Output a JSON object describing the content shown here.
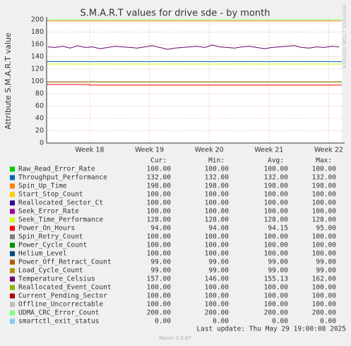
{
  "chart_data": {
    "type": "line",
    "title": "S.M.A.R.T values for drive sde - by month",
    "y_label": "Attribute S.M.A.R.T value",
    "side_label": "RRDTOOL / TOBI OETIKER",
    "footer": "Last update: Thu May 29 19:00:08 2025",
    "version": "Munin 2.0.67",
    "legend_headers": [
      "Cur:",
      "Min:",
      "Avg:",
      "Max:"
    ],
    "xlim": [
      17.28,
      22.22
    ],
    "xticks": [
      {
        "value": 18,
        "label": "Week 18"
      },
      {
        "value": 19,
        "label": "Week 19"
      },
      {
        "value": 20,
        "label": "Week 20"
      },
      {
        "value": 21,
        "label": "Week 21"
      },
      {
        "value": 22,
        "label": "Week 22"
      }
    ],
    "ylim": [
      0,
      200
    ],
    "yticks": [
      0,
      20,
      40,
      60,
      80,
      100,
      120,
      140,
      160,
      180,
      200
    ],
    "grid": true,
    "series": [
      {
        "name": "Raw_Read_Error_Rate",
        "color": "#00cc00",
        "x": [
          17.28,
          22.22
        ],
        "values": [
          100,
          100
        ],
        "stats": [
          "100.00",
          "100.00",
          "100.00",
          "100.00"
        ]
      },
      {
        "name": "Throughput_Performance",
        "color": "#0066b3",
        "x": [
          17.28,
          22.22
        ],
        "values": [
          132,
          132
        ],
        "stats": [
          "132.00",
          "132.00",
          "132.00",
          "132.00"
        ]
      },
      {
        "name": "Spin_Up_Time",
        "color": "#ff8000",
        "x": [
          17.28,
          22.22
        ],
        "values": [
          198,
          198
        ],
        "stats": [
          "198.00",
          "198.00",
          "198.00",
          "198.00"
        ]
      },
      {
        "name": "Start_Stop_Count",
        "color": "#ffcc00",
        "x": [
          17.28,
          22.22
        ],
        "values": [
          100,
          100
        ],
        "stats": [
          "100.00",
          "100.00",
          "100.00",
          "100.00"
        ]
      },
      {
        "name": "Reallocated_Sector_Ct",
        "color": "#330099",
        "x": [
          17.28,
          22.22
        ],
        "values": [
          100,
          100
        ],
        "stats": [
          "100.00",
          "100.00",
          "100.00",
          "100.00"
        ]
      },
      {
        "name": "Seek_Error_Rate",
        "color": "#990099",
        "x": [
          17.28,
          22.22
        ],
        "values": [
          100,
          100
        ],
        "stats": [
          "100.00",
          "100.00",
          "100.00",
          "100.00"
        ]
      },
      {
        "name": "Seek_Time_Performance",
        "color": "#ccff00",
        "x": [
          17.28,
          22.22
        ],
        "values": [
          128,
          128
        ],
        "stats": [
          "128.00",
          "128.00",
          "128.00",
          "128.00"
        ]
      },
      {
        "name": "Power_On_Hours",
        "color": "#ff0000",
        "x": [
          17.28,
          18.0,
          18.0,
          22.22
        ],
        "values": [
          95,
          95,
          94,
          94
        ],
        "stats": [
          "94.00",
          "94.00",
          "94.15",
          "95.00"
        ]
      },
      {
        "name": "Spin_Retry_Count",
        "color": "#808080",
        "x": [
          17.28,
          22.22
        ],
        "values": [
          100,
          100
        ],
        "stats": [
          "100.00",
          "100.00",
          "100.00",
          "100.00"
        ]
      },
      {
        "name": "Power_Cycle_Count",
        "color": "#008f00",
        "x": [
          17.28,
          22.22
        ],
        "values": [
          100,
          100
        ],
        "stats": [
          "100.00",
          "100.00",
          "100.00",
          "100.00"
        ]
      },
      {
        "name": "Helium_Level",
        "color": "#00487d",
        "x": [
          17.28,
          22.22
        ],
        "values": [
          100,
          100
        ],
        "stats": [
          "100.00",
          "100.00",
          "100.00",
          "100.00"
        ]
      },
      {
        "name": "Power_Off_Retract_Count",
        "color": "#b35a00",
        "x": [
          17.28,
          22.22
        ],
        "values": [
          99,
          99
        ],
        "stats": [
          "99.00",
          "99.00",
          "99.00",
          "99.00"
        ]
      },
      {
        "name": "Load_Cycle_Count",
        "color": "#b38f00",
        "x": [
          17.28,
          22.22
        ],
        "values": [
          99,
          99
        ],
        "stats": [
          "99.00",
          "99.00",
          "99.00",
          "99.00"
        ]
      },
      {
        "name": "Temperature_Celsius",
        "color": "#6b006b",
        "x": [
          17.3,
          17.425,
          17.55,
          17.675,
          17.8,
          17.925,
          18.05,
          18.175,
          18.3,
          18.425,
          18.55,
          18.675,
          18.8,
          18.925,
          19.05,
          19.175,
          19.3,
          19.425,
          19.55,
          19.675,
          19.8,
          19.925,
          20.05,
          20.175,
          20.3,
          20.425,
          20.55,
          20.675,
          20.8,
          20.925,
          21.05,
          21.175,
          21.3,
          21.425,
          21.55,
          21.675,
          21.8,
          21.925,
          22.05,
          22.175
        ],
        "values": [
          156,
          155,
          157,
          154,
          158,
          155,
          156,
          153,
          155,
          157,
          156,
          155,
          154,
          156,
          158,
          155,
          152,
          154,
          155,
          156,
          157,
          155,
          159,
          156,
          155,
          154,
          156,
          157,
          155,
          153,
          155,
          156,
          157,
          158,
          155,
          154,
          156,
          155,
          157,
          156
        ],
        "stats": [
          "157.00",
          "146.00",
          "155.13",
          "162.00"
        ]
      },
      {
        "name": "Reallocated_Event_Count",
        "color": "#8fb300",
        "x": [
          17.28,
          22.22
        ],
        "values": [
          100,
          100
        ],
        "stats": [
          "100.00",
          "100.00",
          "100.00",
          "100.00"
        ]
      },
      {
        "name": "Current_Pending_Sector",
        "color": "#b30000",
        "x": [
          17.28,
          22.22
        ],
        "values": [
          100,
          100
        ],
        "stats": [
          "100.00",
          "100.00",
          "100.00",
          "100.00"
        ]
      },
      {
        "name": "Offline_Uncorrectable",
        "color": "#bebebe",
        "x": [
          17.28,
          22.22
        ],
        "values": [
          100,
          100
        ],
        "stats": [
          "100.00",
          "100.00",
          "100.00",
          "100.00"
        ]
      },
      {
        "name": "UDMA_CRC_Error_Count",
        "color": "#80ff80",
        "x": [
          17.28,
          22.22
        ],
        "values": [
          200,
          200
        ],
        "stats": [
          "200.00",
          "200.00",
          "200.00",
          "200.00"
        ]
      },
      {
        "name": "smartctl_exit_status",
        "color": "#80c9ff",
        "x": [
          17.28,
          22.22
        ],
        "values": [
          0,
          0
        ],
        "stats": [
          "0.00",
          "0.00",
          "0.00",
          "0.00"
        ]
      }
    ]
  }
}
